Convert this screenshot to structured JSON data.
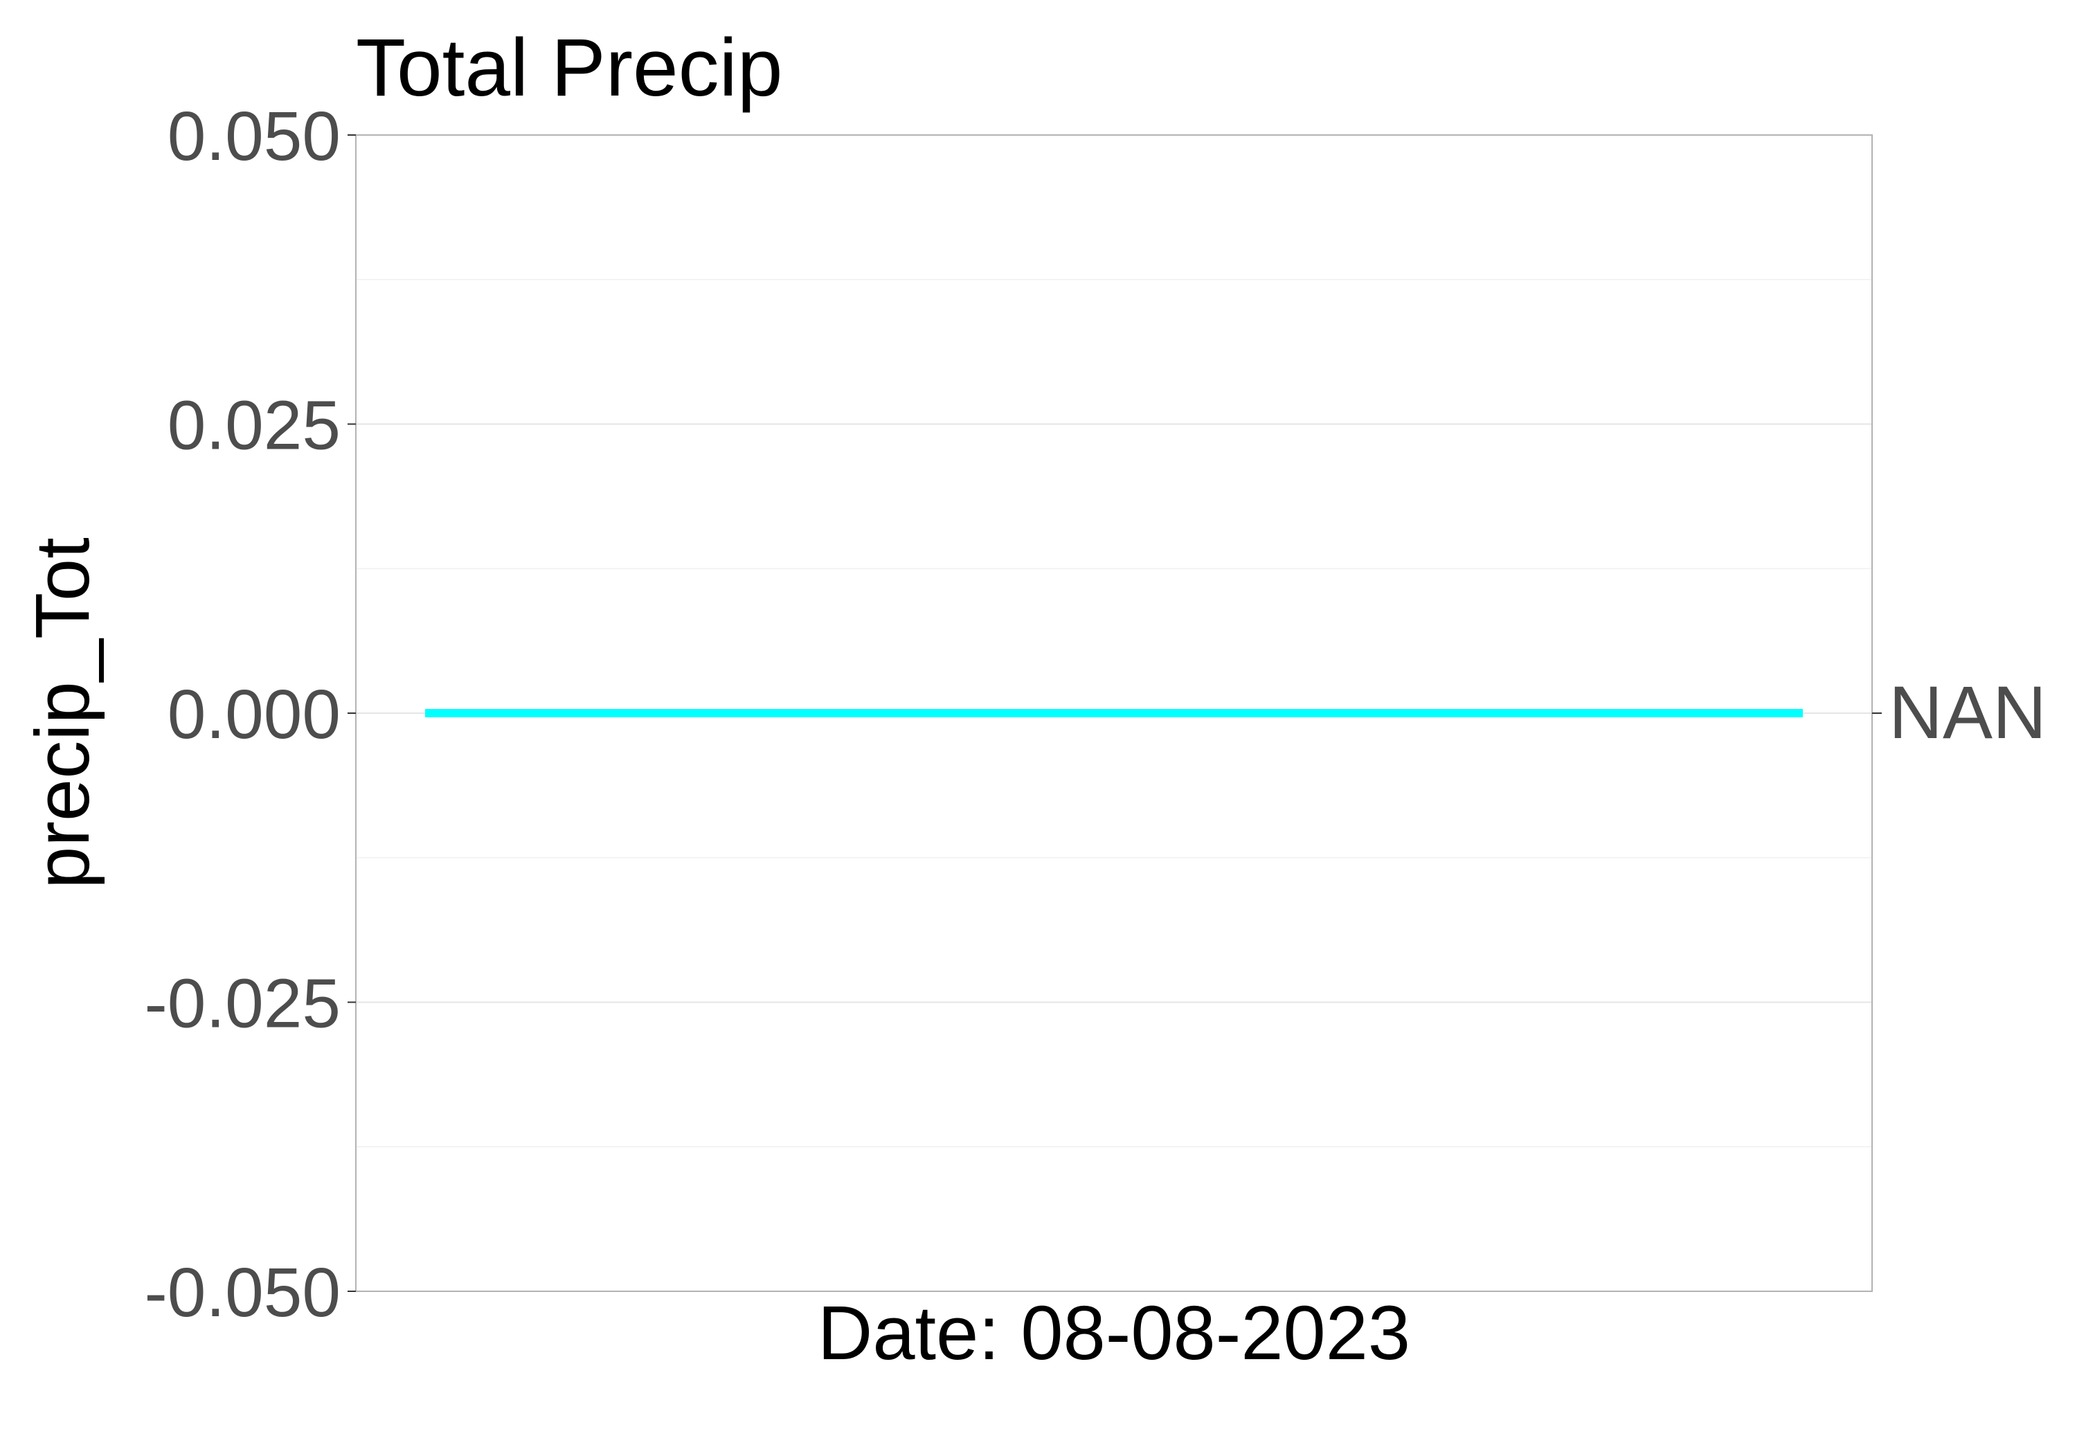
{
  "chart_data": {
    "type": "line",
    "title": "Total Precip",
    "xlabel": "Date: 08-08-2023",
    "ylabel": "precip_Tot",
    "ylim": [
      -0.05,
      0.05
    ],
    "y_ticks": [
      "0.050",
      "0.025",
      "0.000",
      "-0.025",
      "-0.050"
    ],
    "grid": true,
    "series": [
      {
        "name": "NAN",
        "color": "#00ffff",
        "values": [
          0,
          0
        ]
      }
    ]
  }
}
